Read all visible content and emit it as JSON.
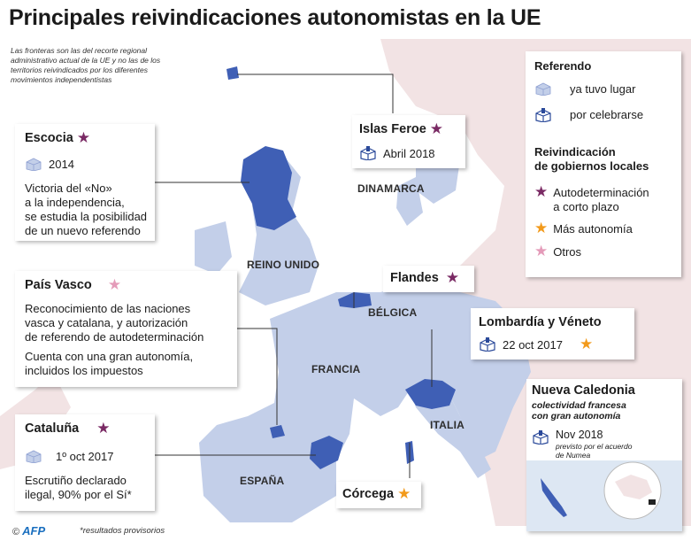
{
  "title": "Principales reivindicaciones autonomistas en la UE",
  "note": "Las fronteras son las del recorte regional administrativo actual de la UE y no las de los territorios reivindicados por los diferentes movimientos independentistas",
  "countries": {
    "reino_unido": "REINO UNIDO",
    "dinamarca": "DINAMARCA",
    "belgica": "BÉLGICA",
    "francia": "FRANCIA",
    "italia": "ITALIA",
    "espana": "ESPAÑA"
  },
  "regions": {
    "escocia": {
      "name": "Escocia",
      "star": "purple",
      "year": "2014",
      "text": [
        "Victoria del «No»",
        "a la independencia,",
        "se estudia la posibilidad",
        "de un nuevo referendo"
      ]
    },
    "islas_feroe": {
      "name": "Islas Feroe",
      "star": "purple",
      "date": "Abril 2018"
    },
    "pais_vasco": {
      "name": "País Vasco",
      "star": "pink",
      "text1": [
        "Reconocimiento de las naciones",
        "vasca y catalana, y autorización",
        "de referendo de autodeterminación"
      ],
      "text2": [
        "Cuenta con una gran autonomía,",
        "incluidos los impuestos"
      ]
    },
    "flandes": {
      "name": "Flandes",
      "star": "purple"
    },
    "lombardia": {
      "name": "Lombardía y Véneto",
      "star": "orange",
      "date": "22 oct 2017"
    },
    "nueva_caledonia": {
      "name": "Nueva Caledonia",
      "subtitle": [
        "colectividad francesa",
        "con gran autonomía"
      ],
      "date": "Nov 2018",
      "note": [
        "previsto por el acuerdo",
        "de Numea"
      ]
    },
    "cataluna": {
      "name": "Cataluña",
      "star": "purple",
      "date": "1º oct 2017",
      "text": [
        "Escrutiño declarado",
        "ilegal, 90% por el Sí*"
      ]
    },
    "corcega": {
      "name": "Córcega",
      "star": "orange"
    }
  },
  "legend": {
    "referendo_title": "Referendo",
    "ya_tuvo": "ya tuvo lugar",
    "por_celebrarse": "por celebrarse",
    "gobiernos_title": [
      "Reivindicación",
      "de gobiernos locales"
    ],
    "autodeterminacion": [
      "Autodeterminación",
      "a corto plazo"
    ],
    "mas_autonomia": "Más autonomía",
    "otros": "Otros"
  },
  "footer": {
    "copyright": "©",
    "agency": "AFP",
    "note": "*resultados provisorios"
  },
  "colors": {
    "land": "#f2e3e4",
    "sea": "#ffffff",
    "eu": "#c3cfe9",
    "highlight": "#3f5fb5",
    "purple_star": "#7a2a64",
    "orange_star": "#f29a1b",
    "pink_star": "#e49bb9"
  },
  "icons": [
    "ballot-box-done-icon",
    "ballot-box-pending-icon",
    "star-icon"
  ]
}
